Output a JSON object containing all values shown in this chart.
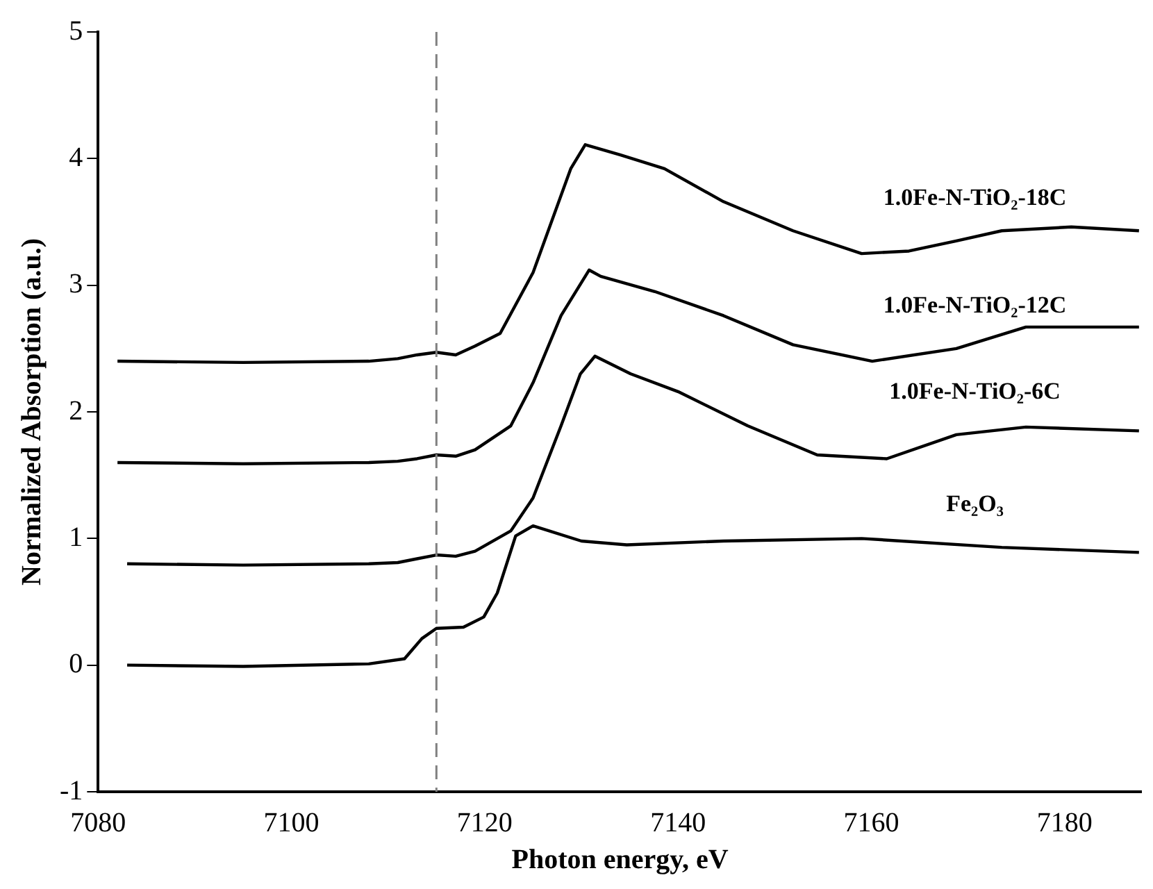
{
  "chart_data": {
    "type": "line",
    "xlabel": "Photon energy, eV",
    "ylabel": "Normalized Absorption (a.u.)",
    "xlim": [
      7080,
      7188
    ],
    "xticks": [
      7080,
      7100,
      7120,
      7140,
      7160,
      7180
    ],
    "ylim": [
      -1,
      5
    ],
    "yticks": [
      -1,
      0,
      1,
      2,
      3,
      4,
      5
    ],
    "grid": false,
    "legend": false,
    "marker": "none",
    "line_style": "solid",
    "ref_lines": [
      {
        "axis": "x",
        "value": 7115,
        "color": "#808080",
        "line_style": "dashed"
      }
    ],
    "series": [
      {
        "name": "1.0Fe-N-TiO₂-18C",
        "color": "#000000",
        "x": [
          7082,
          7095,
          7108,
          7111,
          7113,
          7115,
          7117,
          7119,
          7121.6,
          7125,
          7128.9,
          7130.4,
          7134,
          7138.6,
          7144.7,
          7151.9,
          7159,
          7163.9,
          7168.8,
          7173.5,
          7180.7,
          7187.7
        ],
        "values": [
          2.4,
          2.39,
          2.4,
          2.42,
          2.45,
          2.47,
          2.45,
          2.52,
          2.62,
          3.1,
          3.92,
          4.11,
          4.03,
          3.92,
          3.66,
          3.43,
          3.25,
          3.27,
          3.35,
          3.43,
          3.46,
          3.43
        ]
      },
      {
        "name": "1.0Fe-N-TiO₂-12C",
        "color": "#000000",
        "x": [
          7082,
          7095,
          7108,
          7111,
          7113,
          7115,
          7117,
          7119,
          7122.7,
          7125,
          7127.9,
          7130.8,
          7132,
          7137.6,
          7144.7,
          7151.9,
          7160.1,
          7168.8,
          7176,
          7187.7
        ],
        "values": [
          1.6,
          1.59,
          1.6,
          1.61,
          1.63,
          1.66,
          1.65,
          1.7,
          1.89,
          2.23,
          2.76,
          3.12,
          3.07,
          2.95,
          2.76,
          2.53,
          2.4,
          2.5,
          2.67,
          2.67
        ]
      },
      {
        "name": "1.0Fe-N-TiO₂-6C",
        "color": "#000000",
        "x": [
          7083,
          7095,
          7108,
          7111,
          7113,
          7115,
          7117,
          7119,
          7122.7,
          7125,
          7127.9,
          7129.9,
          7131.4,
          7135.1,
          7140,
          7147.2,
          7154.4,
          7161.6,
          7168.8,
          7176,
          7187.7
        ],
        "values": [
          0.8,
          0.79,
          0.8,
          0.81,
          0.84,
          0.87,
          0.86,
          0.9,
          1.06,
          1.32,
          1.89,
          2.3,
          2.44,
          2.3,
          2.16,
          1.89,
          1.66,
          1.63,
          1.82,
          1.88,
          1.85
        ]
      },
      {
        "name": "Fe₂O₃",
        "color": "#000000",
        "x": [
          7083,
          7095,
          7108,
          7111.7,
          7113.5,
          7115,
          7117.8,
          7119.9,
          7121.3,
          7123.2,
          7125,
          7130,
          7134.7,
          7144.7,
          7159,
          7173.5,
          7187.7
        ],
        "values": [
          0,
          -0.01,
          0.01,
          0.05,
          0.21,
          0.29,
          0.3,
          0.38,
          0.57,
          1.02,
          1.1,
          0.98,
          0.95,
          0.98,
          1.0,
          0.93,
          0.89
        ]
      }
    ]
  }
}
